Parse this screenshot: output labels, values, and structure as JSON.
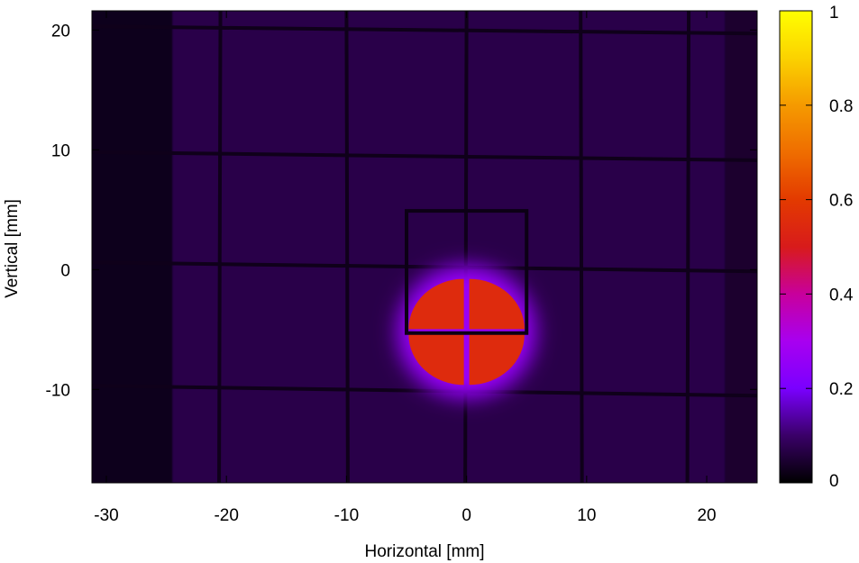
{
  "chart_data": {
    "type": "heatmap",
    "title": "",
    "xlabel": "Horizontal [mm]",
    "ylabel": "Vertical [mm]",
    "xlim": [
      -31.2,
      24.2
    ],
    "ylim": [
      -17.8,
      21.6
    ],
    "xticks": [
      -30,
      -20,
      -10,
      0,
      10,
      20
    ],
    "xtick_labels": [
      "-30",
      "-20",
      "-10",
      "0",
      "10",
      "20"
    ],
    "yticks": [
      -10,
      0,
      10,
      20
    ],
    "ytick_labels": [
      "-10",
      "0",
      "10",
      "20"
    ],
    "colorbar": {
      "min": 0,
      "max": 1,
      "ticks": [
        0,
        0.2,
        0.4,
        0.6,
        0.8,
        1
      ],
      "tick_labels": [
        "0",
        "0.2",
        "0.4",
        "0.6",
        "0.8",
        "1"
      ],
      "palette_stops": [
        {
          "v": 0.0,
          "color": "#000000"
        },
        {
          "v": 0.1,
          "color": "#3a0068"
        },
        {
          "v": 0.2,
          "color": "#7a00ff"
        },
        {
          "v": 0.3,
          "color": "#a800f0"
        },
        {
          "v": 0.4,
          "color": "#c8009c"
        },
        {
          "v": 0.5,
          "color": "#d81b1b"
        },
        {
          "v": 0.6,
          "color": "#e33a00"
        },
        {
          "v": 0.7,
          "color": "#ef6d00"
        },
        {
          "v": 0.8,
          "color": "#f59a00"
        },
        {
          "v": 0.9,
          "color": "#fbd200"
        },
        {
          "v": 1.0,
          "color": "#ffff00"
        }
      ]
    },
    "background_level": 0.07,
    "dark_band_x": [
      -31.2,
      -24.5
    ],
    "grid_wires": {
      "vertical_x": [
        -20.5,
        -10,
        0,
        9.5,
        18.5
      ],
      "horizontal_y": [
        20,
        9.5,
        0.3,
        -10
      ]
    },
    "aperture_box": {
      "x": [
        -5,
        5
      ],
      "y": [
        -5.3,
        4.9
      ]
    },
    "beam_spot": {
      "center": [
        0,
        -5.2
      ],
      "radius_x": 4.6,
      "radius_y": 4.2,
      "peak": 0.55,
      "quadrant_gap_x": 0,
      "quadrant_gap_y": -5.2
    }
  }
}
